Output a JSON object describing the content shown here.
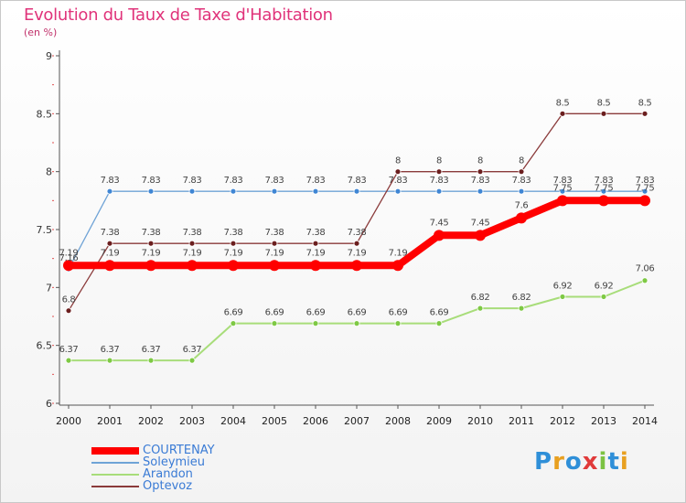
{
  "title": "Evolution du Taux de Taxe d'Habitation",
  "subtitle": "(en %)",
  "logo": "Proxiti",
  "colors": {
    "title": "#e0337a",
    "axis": "#555555",
    "legend_text": "#3a7bd5"
  },
  "chart_data": {
    "type": "line",
    "x": [
      "2000",
      "2001",
      "2002",
      "2003",
      "2004",
      "2005",
      "2006",
      "2007",
      "2008",
      "2009",
      "2010",
      "2011",
      "2012",
      "2013",
      "2014"
    ],
    "ylim": [
      6,
      9
    ],
    "yticks": [
      "6",
      "6.5",
      "7",
      "7.5",
      "8",
      "8.5",
      "9"
    ],
    "grid": false,
    "legend": "bottom-left",
    "series": [
      {
        "name": "COURTENAY",
        "color": "#ff0000",
        "width": 8,
        "values": [
          7.19,
          7.19,
          7.19,
          7.19,
          7.19,
          7.19,
          7.19,
          7.19,
          7.19,
          7.45,
          7.45,
          7.6,
          7.75,
          7.75,
          7.75
        ],
        "labels": [
          "7.19",
          "7.19",
          "7.19",
          "7.19",
          "7.19",
          "7.19",
          "7.19",
          "7.19",
          "7.19",
          "7.45",
          "7.45",
          "7.6",
          "7.75",
          "7.75",
          "7.75"
        ]
      },
      {
        "name": "Soleymieu",
        "color": "#6fa3d6",
        "width": 1.3,
        "values": [
          7.16,
          7.83,
          7.83,
          7.83,
          7.83,
          7.83,
          7.83,
          7.83,
          7.83,
          7.83,
          7.83,
          7.83,
          7.83,
          7.83,
          7.83
        ],
        "labels": [
          "7.16",
          "7.83",
          "7.83",
          "7.83",
          "7.83",
          "7.83",
          "7.83",
          "7.83",
          "7.83",
          "7.83",
          "7.83",
          "7.83",
          "7.83",
          "7.83",
          "7.83"
        ]
      },
      {
        "name": "Arandon",
        "color": "#a8dd7a",
        "width": 2,
        "values": [
          6.37,
          6.37,
          6.37,
          6.37,
          6.69,
          6.69,
          6.69,
          6.69,
          6.69,
          6.69,
          6.82,
          6.82,
          6.92,
          6.92,
          7.06
        ],
        "labels": [
          "6.37",
          "6.37",
          "6.37",
          "6.37",
          "6.69",
          "6.69",
          "6.69",
          "6.69",
          "6.69",
          "6.69",
          "6.82",
          "6.82",
          "6.92",
          "6.92",
          "7.06"
        ]
      },
      {
        "name": "Optevoz",
        "color": "#8b3b3b",
        "width": 1.3,
        "values": [
          6.8,
          7.38,
          7.38,
          7.38,
          7.38,
          7.38,
          7.38,
          7.38,
          8,
          8,
          8,
          8,
          8.5,
          8.5,
          8.5
        ],
        "labels": [
          "6.8",
          "7.38",
          "7.38",
          "7.38",
          "7.38",
          "7.38",
          "7.38",
          "7.38",
          "8",
          "8",
          "8",
          "8",
          "8.5",
          "8.5",
          "8.5"
        ]
      }
    ]
  }
}
